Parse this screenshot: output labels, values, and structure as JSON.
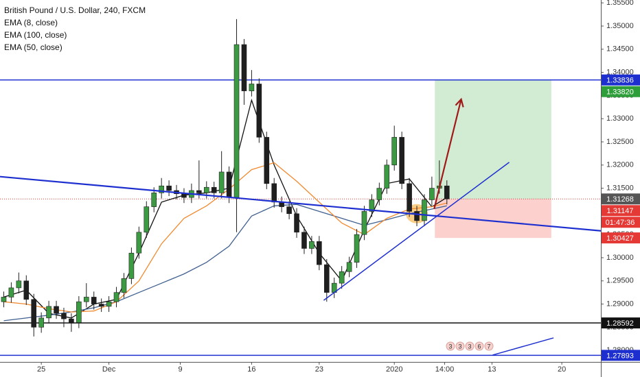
{
  "chart_data": {
    "type": "candlestick",
    "title": "British Pound / U.S. Dollar, 240, FXCM",
    "up_color": "#3c9a42",
    "down_color": "#1f1f1f",
    "open": [
      1.2905,
      1.2915,
      1.2935,
      1.295,
      1.291,
      1.285,
      1.287,
      1.2895,
      1.288,
      1.2868,
      1.286,
      1.2905,
      1.2915,
      1.29,
      1.2895,
      1.2905,
      1.2925,
      1.2955,
      1.301,
      1.3055,
      1.311,
      1.314,
      1.3155,
      1.3145,
      1.3138,
      1.313,
      1.3145,
      1.314,
      1.3152,
      1.314,
      1.3185,
      1.313,
      1.346,
      1.336,
      1.3375,
      1.326,
      1.316,
      1.312,
      1.311,
      1.3095,
      1.3055,
      1.302,
      1.3035,
      1.2985,
      1.2925,
      1.2945,
      1.297,
      1.299,
      1.305,
      1.31,
      1.3125,
      1.315,
      1.32,
      1.326,
      1.316,
      1.31,
      1.308,
      1.3125,
      1.315,
      1.3155
    ],
    "high": [
      1.2927,
      1.2947,
      1.2968,
      1.2962,
      1.2922,
      1.2882,
      1.2907,
      1.2907,
      1.2892,
      1.288,
      1.2917,
      1.2945,
      1.2927,
      1.2912,
      1.2917,
      1.2937,
      1.2967,
      1.3022,
      1.3067,
      1.3122,
      1.3152,
      1.3172,
      1.3167,
      1.3157,
      1.315,
      1.316,
      1.321,
      1.3165,
      1.3164,
      1.323,
      1.3197,
      1.3515,
      1.3472,
      1.3405,
      1.3387,
      1.3272,
      1.3172,
      1.3132,
      1.3122,
      1.3107,
      1.3067,
      1.3047,
      1.3047,
      1.2997,
      1.2957,
      1.2982,
      1.3002,
      1.3062,
      1.3112,
      1.3137,
      1.3162,
      1.3212,
      1.3285,
      1.3272,
      1.3172,
      1.3112,
      1.3137,
      1.3175,
      1.321,
      1.3167
    ],
    "low": [
      1.2893,
      1.2903,
      1.2923,
      1.2898,
      1.283,
      1.2838,
      1.2858,
      1.2868,
      1.285,
      1.284,
      1.2848,
      1.2893,
      1.2888,
      1.2883,
      1.2883,
      1.2893,
      1.2913,
      1.2943,
      1.2998,
      1.3043,
      1.3098,
      1.3128,
      1.3133,
      1.3126,
      1.3118,
      1.3118,
      1.3128,
      1.3128,
      1.3128,
      1.3128,
      1.3118,
      1.3055,
      1.333,
      1.3348,
      1.3248,
      1.3148,
      1.3108,
      1.3098,
      1.3083,
      1.3043,
      1.3008,
      1.3008,
      1.2973,
      1.2905,
      1.2913,
      1.2933,
      1.2958,
      1.2978,
      1.3038,
      1.3088,
      1.3113,
      1.3138,
      1.3188,
      1.3148,
      1.3088,
      1.3068,
      1.3068,
      1.3113,
      1.3138,
      1.3115
    ],
    "close": [
      1.2915,
      1.2935,
      1.295,
      1.291,
      1.285,
      1.287,
      1.2895,
      1.288,
      1.2868,
      1.286,
      1.2905,
      1.2915,
      1.29,
      1.2895,
      1.2905,
      1.2925,
      1.2955,
      1.301,
      1.3055,
      1.311,
      1.314,
      1.3155,
      1.3145,
      1.3138,
      1.313,
      1.3145,
      1.314,
      1.3152,
      1.314,
      1.3185,
      1.313,
      1.346,
      1.336,
      1.3375,
      1.326,
      1.316,
      1.312,
      1.311,
      1.3095,
      1.3055,
      1.302,
      1.3035,
      1.2985,
      1.2925,
      1.2945,
      1.297,
      1.299,
      1.305,
      1.31,
      1.3125,
      1.315,
      1.32,
      1.326,
      1.316,
      1.31,
      1.308,
      1.3125,
      1.315,
      1.3155,
      1.31268
    ],
    "series": [
      {
        "name": "EMA (8, close)",
        "color": "#111111",
        "x": [
          0,
          3,
          6,
          9,
          12,
          15,
          18,
          21,
          24,
          27,
          30,
          33,
          36,
          39,
          42,
          45,
          48,
          51,
          54,
          57,
          59
        ],
        "values": [
          1.2915,
          1.293,
          1.288,
          1.287,
          1.29,
          1.291,
          1.301,
          1.312,
          1.3135,
          1.314,
          1.315,
          1.334,
          1.32,
          1.309,
          1.301,
          1.295,
          1.306,
          1.316,
          1.317,
          1.311,
          1.313
        ]
      },
      {
        "name": "EMA (100, close)",
        "color": "#3f5f8f",
        "x": [
          0,
          3,
          6,
          9,
          12,
          15,
          18,
          21,
          24,
          27,
          30,
          33,
          36,
          39,
          42,
          45,
          48,
          51,
          54,
          57,
          59
        ],
        "values": [
          1.2864,
          1.287,
          1.2876,
          1.2883,
          1.2892,
          1.2905,
          1.2925,
          1.2945,
          1.2965,
          1.299,
          1.3025,
          1.309,
          1.3112,
          1.3115,
          1.31,
          1.3085,
          1.307,
          1.3082,
          1.3095,
          1.3105,
          1.3112
        ]
      },
      {
        "name": "EMA (50, close)",
        "color": "#f08a30",
        "x": [
          0,
          3,
          6,
          9,
          12,
          15,
          18,
          21,
          24,
          27,
          30,
          33,
          36,
          39,
          42,
          45,
          48,
          51,
          54,
          57,
          59
        ],
        "values": [
          1.2905,
          1.29,
          1.289,
          1.2883,
          1.2885,
          1.2905,
          1.295,
          1.303,
          1.3085,
          1.3112,
          1.3148,
          1.319,
          1.3205,
          1.3165,
          1.312,
          1.3075,
          1.305,
          1.3085,
          1.3105,
          1.311,
          1.3118
        ]
      }
    ],
    "xlim": [
      -0.5,
      79.5
    ],
    "xticks": [
      {
        "value": 5,
        "label": "25"
      },
      {
        "value": 14,
        "label": "Dec"
      },
      {
        "value": 23.5,
        "label": "9"
      },
      {
        "value": 33,
        "label": "16"
      },
      {
        "value": 42,
        "label": "23"
      },
      {
        "value": 52,
        "label": "2020"
      },
      {
        "value": 58.7,
        "label": "14:00"
      },
      {
        "value": 65,
        "label": "13"
      },
      {
        "value": 74.3,
        "label": "20"
      }
    ],
    "ylim": [
      1.27751,
      1.35562
    ],
    "yticks": [
      {
        "value": 1.355,
        "label": "1.35500"
      },
      {
        "value": 1.35,
        "label": "1.35000"
      },
      {
        "value": 1.345,
        "label": "1.34500"
      },
      {
        "value": 1.34,
        "label": "1.34000"
      },
      {
        "value": 1.335,
        "label": "1.33500"
      },
      {
        "value": 1.33,
        "label": "1.33000"
      },
      {
        "value": 1.325,
        "label": "1.32500"
      },
      {
        "value": 1.32,
        "label": "1.32000"
      },
      {
        "value": 1.315,
        "label": "1.31500"
      },
      {
        "value": 1.31,
        "label": "1.31000"
      },
      {
        "value": 1.305,
        "label": "1.30500"
      },
      {
        "value": 1.3,
        "label": "1.30000"
      },
      {
        "value": 1.295,
        "label": "1.29500"
      },
      {
        "value": 1.29,
        "label": "1.29000"
      },
      {
        "value": 1.285,
        "label": "1.28500"
      },
      {
        "value": 1.28,
        "label": "1.28000"
      }
    ],
    "horizontal_lines": [
      {
        "value": 1.33836,
        "color": "#1e2fd0"
      },
      {
        "value": 1.28592,
        "color": "#111111"
      },
      {
        "value": 1.27893,
        "color": "#1e2fd0"
      }
    ],
    "last_price": {
      "value": 1.31268,
      "color": "#e53935"
    },
    "position": {
      "x": [
        57.4,
        72.9
      ],
      "target": 1.33836,
      "entry": 1.31268,
      "stop": 1.30427
    },
    "trendlines": [
      {
        "color": "#1e2fd0",
        "x": [
          -0.5,
          79.5
        ],
        "values": [
          1.3175,
          1.3058
        ]
      },
      {
        "color": "#1e2fd0",
        "x": [
          42.6,
          67.3
        ],
        "values": [
          1.2908,
          1.3206
        ]
      },
      {
        "color": "#1e2fd0",
        "x": [
          65.1,
          73.2
        ],
        "values": [
          1.279,
          1.2827
        ]
      }
    ],
    "arrow": {
      "color": "#a01818",
      "x": [
        57.3,
        60.9
      ],
      "values": [
        1.3105,
        1.3342
      ]
    },
    "highlight": {
      "x": 55,
      "value": 1.3095
    },
    "price_labels": [
      {
        "value": 1.33836,
        "label": "1.33836",
        "color": "#1e2fd0"
      },
      {
        "value": 1.3382,
        "label": "1.33820",
        "color": "#2e9e3a"
      },
      {
        "value": 1.31268,
        "label": "1.31268",
        "color": "#555555"
      },
      {
        "value": 1.31147,
        "label": "1.31147",
        "color": "#e53935",
        "countdown": "01:47:36"
      },
      {
        "value": 1.30427,
        "label": "1.30427",
        "color": "#e53935"
      },
      {
        "value": 1.28592,
        "label": "1.28592",
        "color": "#111111"
      },
      {
        "value": 1.27893,
        "label": "1.27893",
        "color": "#1e2fd0"
      }
    ],
    "event_markers": [
      "3",
      "3",
      "3",
      "6",
      "7"
    ]
  }
}
